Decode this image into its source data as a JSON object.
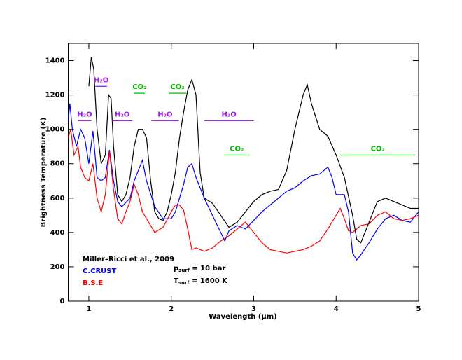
{
  "chart_data": {
    "type": "line",
    "xlabel": "Wavelength (μm)",
    "ylabel": "Brightness Temperature (K)",
    "xlim": [
      0.75,
      5
    ],
    "ylim": [
      0,
      1500
    ],
    "xticks": [
      1,
      2,
      3,
      4,
      5
    ],
    "yticks": [
      0,
      200,
      400,
      600,
      800,
      1000,
      1200,
      1400
    ],
    "series": [
      {
        "color": "#000000",
        "x": [
          1.0,
          1.03,
          1.06,
          1.1,
          1.15,
          1.2,
          1.24,
          1.27,
          1.3,
          1.35,
          1.4,
          1.45,
          1.5,
          1.55,
          1.6,
          1.65,
          1.7,
          1.75,
          1.8,
          1.85,
          1.9,
          1.95,
          2.0,
          2.05,
          2.1,
          2.15,
          2.2,
          2.25,
          2.3,
          2.35,
          2.4,
          2.5,
          2.6,
          2.7,
          2.8,
          2.9,
          3.0,
          3.1,
          3.2,
          3.3,
          3.4,
          3.5,
          3.6,
          3.65,
          3.7,
          3.8,
          3.9,
          4.0,
          4.1,
          4.2,
          4.25,
          4.3,
          4.4,
          4.5,
          4.6,
          4.7,
          4.8,
          4.9,
          5.0
        ],
        "values": [
          1250,
          1420,
          1350,
          1000,
          800,
          850,
          1200,
          1180,
          900,
          620,
          580,
          620,
          720,
          900,
          1000,
          1000,
          950,
          700,
          520,
          480,
          470,
          520,
          620,
          750,
          950,
          1100,
          1230,
          1290,
          1200,
          750,
          600,
          570,
          500,
          430,
          460,
          520,
          580,
          620,
          640,
          650,
          760,
          1000,
          1200,
          1260,
          1150,
          1000,
          960,
          850,
          720,
          500,
          360,
          340,
          460,
          580,
          600,
          580,
          560,
          540,
          540
        ]
      },
      {
        "name": "C.CRUST",
        "color": "#0000ff",
        "x": [
          0.75,
          0.77,
          0.8,
          0.85,
          0.9,
          0.95,
          1.0,
          1.05,
          1.1,
          1.15,
          1.2,
          1.25,
          1.3,
          1.35,
          1.4,
          1.5,
          1.55,
          1.6,
          1.65,
          1.7,
          1.8,
          1.9,
          2.0,
          2.05,
          2.1,
          2.15,
          2.2,
          2.25,
          2.3,
          2.4,
          2.5,
          2.6,
          2.65,
          2.7,
          2.8,
          2.9,
          3.0,
          3.1,
          3.2,
          3.3,
          3.4,
          3.5,
          3.6,
          3.7,
          3.8,
          3.9,
          3.95,
          4.0,
          4.1,
          4.15,
          4.2,
          4.25,
          4.3,
          4.4,
          4.5,
          4.6,
          4.7,
          4.8,
          4.9,
          5.0
        ],
        "values": [
          1050,
          1150,
          1000,
          900,
          1000,
          950,
          800,
          990,
          720,
          700,
          720,
          880,
          700,
          580,
          550,
          600,
          700,
          760,
          820,
          700,
          550,
          480,
          480,
          520,
          600,
          680,
          780,
          800,
          720,
          600,
          500,
          400,
          350,
          410,
          440,
          420,
          470,
          520,
          560,
          600,
          640,
          660,
          700,
          730,
          740,
          780,
          720,
          620,
          620,
          520,
          280,
          240,
          270,
          340,
          420,
          480,
          500,
          470,
          460,
          520
        ]
      },
      {
        "name": "B.S.E",
        "color": "#ff0000",
        "x": [
          0.75,
          0.78,
          0.82,
          0.87,
          0.9,
          0.95,
          1.0,
          1.05,
          1.1,
          1.15,
          1.2,
          1.25,
          1.3,
          1.35,
          1.4,
          1.45,
          1.5,
          1.55,
          1.6,
          1.65,
          1.7,
          1.8,
          1.9,
          2.0,
          2.05,
          2.1,
          2.15,
          2.2,
          2.25,
          2.3,
          2.4,
          2.5,
          2.6,
          2.7,
          2.8,
          2.9,
          3.0,
          3.1,
          3.2,
          3.3,
          3.4,
          3.5,
          3.6,
          3.7,
          3.8,
          3.9,
          4.0,
          4.05,
          4.1,
          4.15,
          4.2,
          4.3,
          4.4,
          4.5,
          4.6,
          4.7,
          4.8,
          4.9,
          5.0
        ],
        "values": [
          950,
          1000,
          850,
          900,
          780,
          720,
          700,
          800,
          600,
          520,
          620,
          870,
          650,
          480,
          450,
          520,
          580,
          680,
          620,
          520,
          480,
          400,
          430,
          520,
          560,
          560,
          530,
          420,
          300,
          310,
          290,
          310,
          350,
          380,
          420,
          460,
          400,
          340,
          300,
          290,
          280,
          290,
          300,
          320,
          350,
          420,
          500,
          540,
          480,
          410,
          400,
          440,
          450,
          500,
          520,
          480,
          470,
          480,
          500
        ]
      }
    ],
    "bands": [
      {
        "label": "H₂O",
        "color": "#a020f0",
        "range": [
          0.87,
          1.03
        ],
        "y": 1050
      },
      {
        "label": "H₂O",
        "color": "#a020f0",
        "range": [
          1.08,
          1.22
        ],
        "y": 1250
      },
      {
        "label": "H₂O",
        "color": "#a020f0",
        "range": [
          1.28,
          1.53
        ],
        "y": 1050
      },
      {
        "label": "CO₂",
        "color": "#00c000",
        "range": [
          1.55,
          1.68
        ],
        "y": 1210
      },
      {
        "label": "H₂O",
        "color": "#a020f0",
        "range": [
          1.76,
          2.09
        ],
        "y": 1050
      },
      {
        "label": "CO₂",
        "color": "#00c000",
        "range": [
          1.97,
          2.18
        ],
        "y": 1210
      },
      {
        "label": "H₂O",
        "color": "#a020f0",
        "range": [
          2.4,
          3.0
        ],
        "y": 1050
      },
      {
        "label": "CO₂",
        "color": "#00c000",
        "range": [
          2.64,
          2.95
        ],
        "y": 850
      },
      {
        "label": "CO₂",
        "color": "#00c000",
        "range": [
          4.05,
          4.96
        ],
        "y": 850
      }
    ],
    "note": "Miller–Ricci et al., 2009",
    "params": [
      {
        "symbol": "p",
        "subscript": "surf",
        "text": " = 10 bar"
      },
      {
        "symbol": "T",
        "subscript": "surf",
        "text": " = 1600 K"
      }
    ]
  }
}
